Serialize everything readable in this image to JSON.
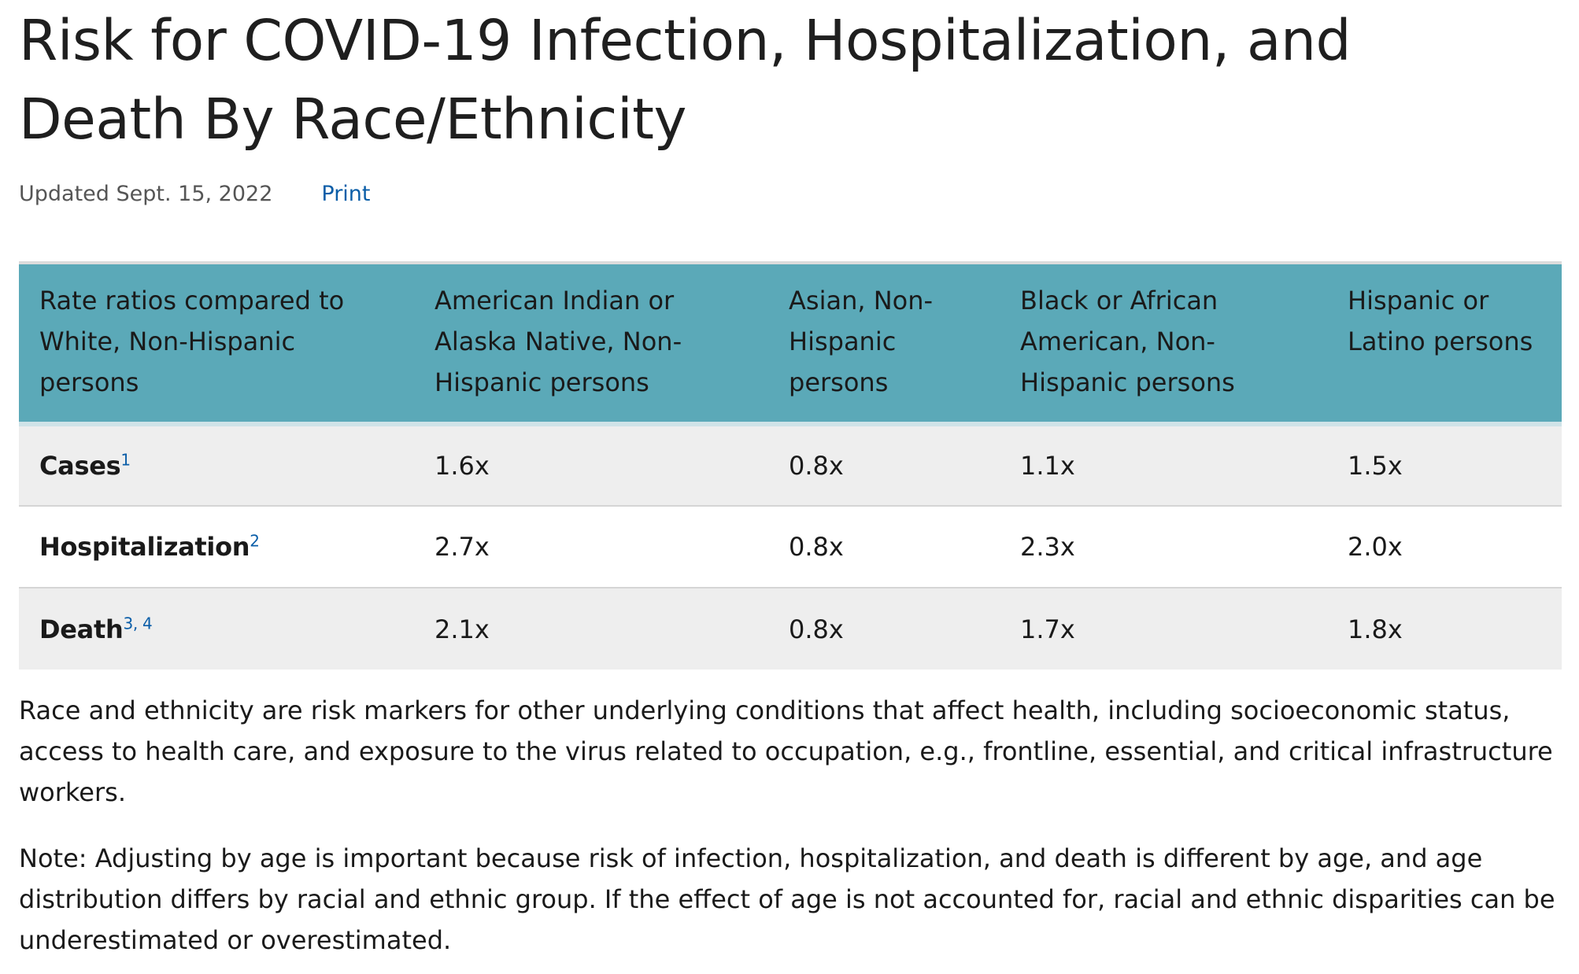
{
  "header": {
    "title": "Risk for COVID-19 Infection, Hospitalization, and Death By Race/Ethnicity",
    "updated": "Updated Sept. 15, 2022",
    "print_label": "Print"
  },
  "table": {
    "columns": [
      "Rate ratios compared to White, Non-Hispanic persons",
      "American Indian or Alaska Native, Non-Hispanic persons",
      "Asian, Non-Hispanic persons",
      "Black or African American, Non-Hispanic persons",
      "Hispanic or Latino persons"
    ],
    "rows": [
      {
        "label": "Cases",
        "footnote": "1",
        "values": [
          "1.6x",
          "0.8x",
          "1.1x",
          "1.5x"
        ]
      },
      {
        "label": "Hospitalization",
        "footnote": "2",
        "values": [
          "2.7x",
          "0.8x",
          "2.3x",
          "2.0x"
        ]
      },
      {
        "label": "Death",
        "footnote": "3, 4",
        "values": [
          "2.1x",
          "0.8x",
          "1.7x",
          "1.8x"
        ]
      }
    ]
  },
  "notes": {
    "paragraph_1": "Race and ethnicity are risk markers for other underlying conditions that affect health, including socioeconomic status, access to health care, and exposure to the virus related to occupation, e.g., frontline, essential, and critical infrastructure workers.",
    "paragraph_2": "Note: Adjusting by age is important because risk of infection, hospitalization, and death is different by age, and age distribution differs by racial and ethnic group. If the effect of age is not accounted for, racial and ethnic disparities can be underestimated or overestimated."
  },
  "colors": {
    "header_bg": "#5ba9b8",
    "shaded_row": "#eeeeee",
    "link": "#0b5ea8"
  }
}
